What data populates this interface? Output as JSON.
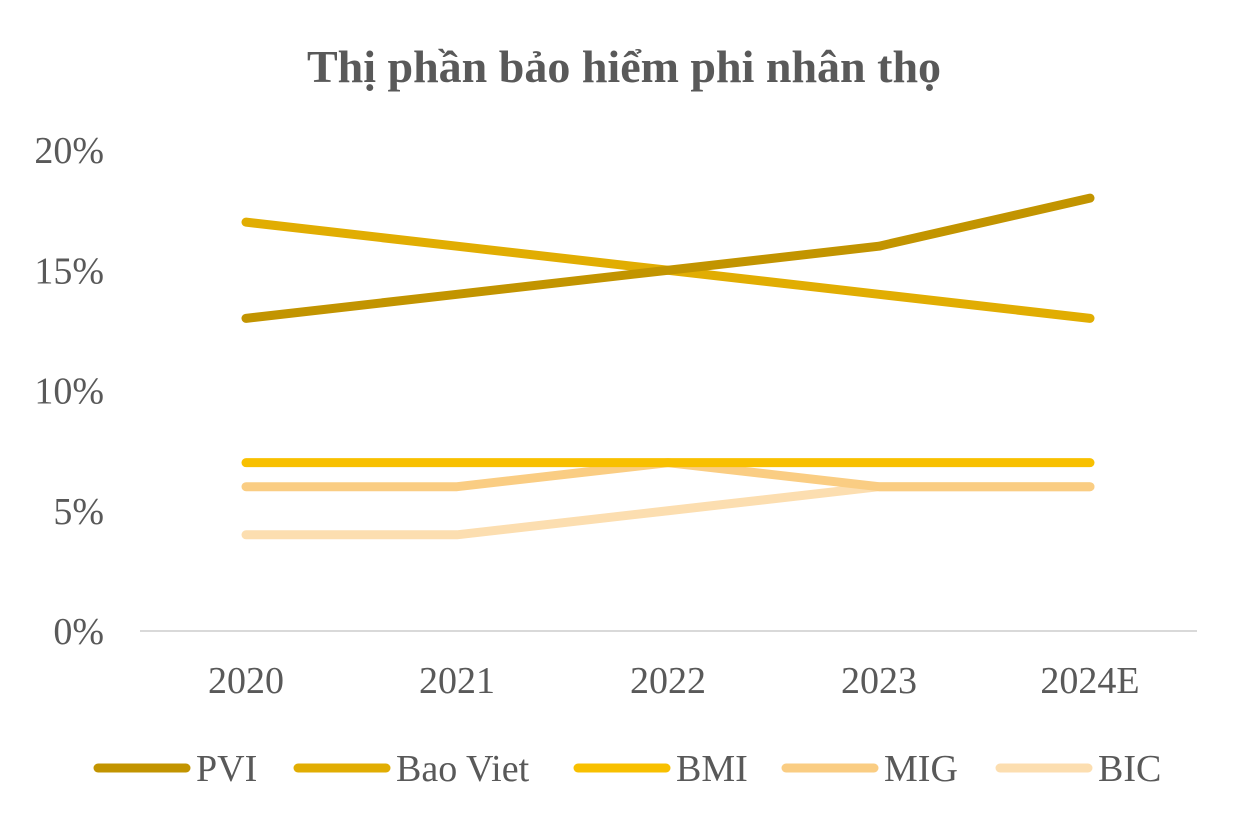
{
  "chart_data": {
    "type": "line",
    "title": "Thị phần bảo hiểm phi nhân thọ",
    "xlabel": "",
    "ylabel": "",
    "categories": [
      "2020",
      "2021",
      "2022",
      "2023",
      "2024E"
    ],
    "y_ticks": [
      0,
      5,
      10,
      15,
      20
    ],
    "y_tick_labels": [
      "0%",
      "5%",
      "10%",
      "15%",
      "20%"
    ],
    "ylim": [
      0,
      20
    ],
    "grid": false,
    "legend_position": "bottom",
    "series": [
      {
        "name": "PVI",
        "color": "#C29400",
        "values": [
          13,
          14,
          15,
          16,
          18
        ]
      },
      {
        "name": "Bao Viet",
        "color": "#E1AD02",
        "values": [
          17,
          16,
          15,
          14,
          13
        ]
      },
      {
        "name": "BMI",
        "color": "#F8C000",
        "values": [
          7,
          7,
          7,
          7,
          7
        ]
      },
      {
        "name": "MIG",
        "color": "#FACD83",
        "values": [
          6,
          6,
          7,
          6,
          6
        ]
      },
      {
        "name": "BIC",
        "color": "#FCDEB0",
        "values": [
          4,
          4,
          5,
          6,
          6
        ]
      }
    ]
  }
}
